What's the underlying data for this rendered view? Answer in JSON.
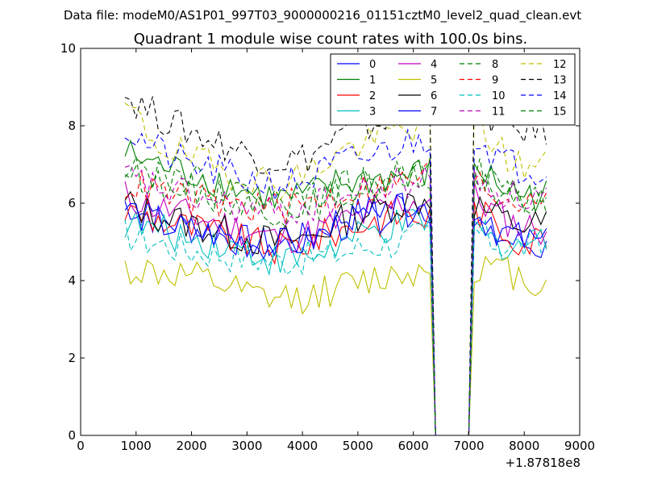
{
  "chart_data": {
    "type": "line",
    "suptitle": "Data file: modeM0/AS1P01_997T03_9000000216_01151cztM0_level2_quad_clean.evt",
    "title": "Quadrant 1 module wise count rates with 100.0s bins.",
    "xlabel": "",
    "ylabel": "",
    "x_offset_label": "+1.87818e8",
    "xlim": [
      0,
      9000
    ],
    "ylim": [
      0,
      10
    ],
    "x_ticks": [
      0,
      1000,
      2000,
      3000,
      4000,
      5000,
      6000,
      7000,
      8000,
      9000
    ],
    "x_tick_labels": [
      "0",
      "1000",
      "2000",
      "3000",
      "4000",
      "5000",
      "6000",
      "7000",
      "8000",
      "9000"
    ],
    "y_ticks": [
      0,
      2,
      4,
      6,
      8,
      10
    ],
    "y_tick_labels": [
      "0",
      "2",
      "4",
      "6",
      "8",
      "10"
    ],
    "grid": false,
    "legend_position": "top-right",
    "legend_columns": 4,
    "sampling": {
      "x_start": 800,
      "x_step": 100,
      "n_points": 77,
      "gap_start": 6400,
      "gap_end": 7000
    },
    "series": [
      {
        "name": "0",
        "color": "#0000ff",
        "dash": "solid",
        "seg1": [
          6.0,
          5.6,
          5.4,
          5.2,
          5.0,
          4.9,
          5.1,
          5.6,
          5.8,
          6.0,
          5.9
        ],
        "seg2": [
          5.5,
          5.2,
          5.0,
          4.9,
          4.8
        ]
      },
      {
        "name": "1",
        "color": "#008000",
        "dash": "solid",
        "seg1": [
          7.3,
          7.0,
          6.8,
          6.6,
          6.3,
          6.1,
          6.2,
          6.5,
          6.6,
          6.7,
          6.8
        ],
        "seg2": [
          7.0,
          6.6,
          6.3,
          6.2,
          6.2
        ]
      },
      {
        "name": "2",
        "color": "#ff0000",
        "dash": "solid",
        "seg1": [
          5.8,
          5.6,
          5.4,
          5.2,
          5.0,
          4.8,
          5.0,
          5.3,
          5.5,
          5.7,
          5.6
        ],
        "seg2": [
          5.9,
          5.5,
          5.2,
          5.0,
          5.2
        ]
      },
      {
        "name": "3",
        "color": "#00bfbf",
        "dash": "solid",
        "seg1": [
          5.5,
          5.3,
          5.1,
          5.0,
          4.8,
          4.5,
          4.6,
          4.9,
          5.2,
          5.4,
          5.5
        ],
        "seg2": [
          5.3,
          5.0,
          4.9,
          5.0,
          5.0
        ]
      },
      {
        "name": "4",
        "color": "#bf00bf",
        "dash": "solid",
        "seg1": [
          6.2,
          5.9,
          5.7,
          5.5,
          5.3,
          5.1,
          5.2,
          5.5,
          5.7,
          6.0,
          6.1
        ],
        "seg2": [
          6.2,
          5.8,
          5.5,
          5.4,
          5.3
        ]
      },
      {
        "name": "5",
        "color": "#bfbf00",
        "dash": "solid",
        "seg1": [
          4.3,
          4.2,
          4.1,
          3.9,
          3.6,
          3.5,
          3.6,
          3.8,
          4.0,
          4.2,
          4.3
        ],
        "seg2": [
          4.4,
          4.3,
          4.2,
          4.0,
          3.9
        ]
      },
      {
        "name": "6",
        "color": "#000000",
        "dash": "solid",
        "seg1": [
          6.0,
          5.7,
          5.5,
          5.3,
          5.1,
          5.0,
          5.1,
          5.5,
          5.8,
          6.0,
          6.1
        ],
        "seg2": [
          6.0,
          5.7,
          5.5,
          5.4,
          5.5
        ]
      },
      {
        "name": "7",
        "color": "#0000ff",
        "dash": "solid",
        "seg1": [
          5.9,
          5.5,
          5.3,
          5.2,
          5.0,
          4.9,
          5.0,
          5.4,
          5.6,
          5.8,
          5.9
        ],
        "seg2": [
          5.8,
          5.4,
          5.2,
          5.0,
          4.9
        ]
      },
      {
        "name": "8",
        "color": "#008000",
        "dash": "dashed",
        "seg1": [
          6.9,
          6.6,
          6.4,
          6.2,
          6.0,
          5.8,
          5.9,
          6.2,
          6.4,
          6.6,
          6.7
        ],
        "seg2": [
          6.8,
          6.4,
          6.2,
          6.0,
          6.0
        ]
      },
      {
        "name": "9",
        "color": "#ff0000",
        "dash": "dashed",
        "seg1": [
          6.5,
          6.3,
          6.1,
          6.0,
          5.9,
          5.9,
          6.0,
          6.2,
          6.4,
          6.5,
          6.8
        ],
        "seg2": [
          6.6,
          6.3,
          6.1,
          6.2,
          6.4
        ]
      },
      {
        "name": "10",
        "color": "#00bfbf",
        "dash": "dashed",
        "seg1": [
          5.2,
          5.0,
          4.8,
          4.7,
          4.6,
          4.5,
          4.6,
          4.7,
          4.9,
          5.0,
          5.2
        ],
        "seg2": [
          5.3,
          5.0,
          4.9,
          4.9,
          4.9
        ]
      },
      {
        "name": "11",
        "color": "#bf00bf",
        "dash": "dashed",
        "seg1": [
          6.7,
          6.4,
          6.2,
          6.0,
          5.8,
          5.7,
          5.9,
          6.1,
          6.3,
          6.5,
          6.6
        ],
        "seg2": [
          6.7,
          6.4,
          6.2,
          6.1,
          6.2
        ]
      },
      {
        "name": "12",
        "color": "#bfbf00",
        "dash": "dashed",
        "seg1": [
          8.5,
          7.6,
          7.2,
          6.9,
          6.7,
          6.5,
          6.8,
          7.3,
          7.6,
          7.9,
          8.1
        ],
        "seg2": [
          8.3,
          7.6,
          7.1,
          6.9,
          7.0
        ]
      },
      {
        "name": "13",
        "color": "#000000",
        "dash": "dashed",
        "seg1": [
          8.8,
          8.3,
          7.9,
          7.6,
          7.3,
          7.1,
          7.2,
          7.7,
          8.0,
          8.3,
          8.5
        ],
        "seg2": [
          8.6,
          8.2,
          7.9,
          7.9,
          7.9
        ]
      },
      {
        "name": "14",
        "color": "#0000ff",
        "dash": "dashed",
        "seg1": [
          7.9,
          7.4,
          7.0,
          6.8,
          6.6,
          6.5,
          6.6,
          7.0,
          7.2,
          7.5,
          7.7
        ],
        "seg2": [
          7.8,
          7.3,
          7.0,
          6.9,
          6.9
        ]
      },
      {
        "name": "15",
        "color": "#008000",
        "dash": "dashed",
        "seg1": [
          7.1,
          6.8,
          6.6,
          6.4,
          6.2,
          6.0,
          6.1,
          6.4,
          6.5,
          6.7,
          6.8
        ],
        "seg2": [
          6.9,
          6.5,
          6.3,
          6.1,
          6.2
        ]
      }
    ]
  }
}
